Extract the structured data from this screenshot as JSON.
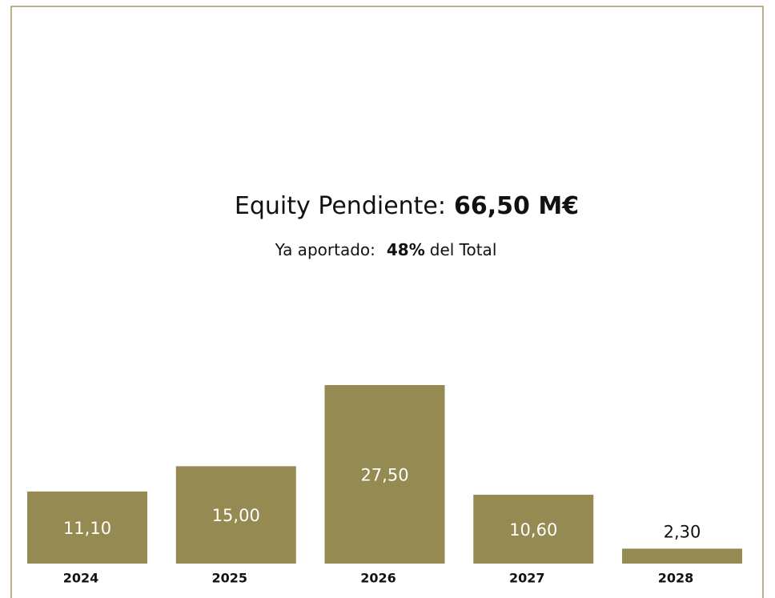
{
  "chart_data": {
    "type": "bar",
    "title": [
      "Equity Pendiente:",
      "66,50 M€"
    ],
    "subtitle": [
      "Ya aportado:",
      "48%",
      "del Total"
    ],
    "categories": [
      "2024",
      "2025",
      "2026",
      "2027",
      "2028"
    ],
    "values": [
      11.1,
      15.0,
      27.5,
      10.6,
      2.3
    ],
    "value_labels": [
      "11,10",
      "15,00",
      "27,50",
      "10,60",
      "2,30"
    ],
    "color": "#958a52"
  }
}
